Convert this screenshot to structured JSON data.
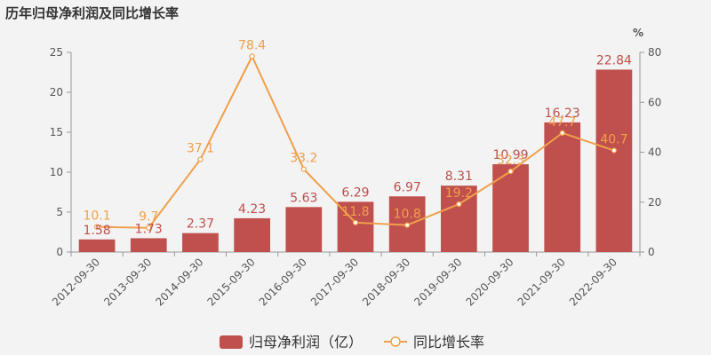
{
  "chart_data": {
    "type": "bar",
    "title": "历年归母净利润及同比增长率",
    "categories": [
      "2012-09-30",
      "2013-09-30",
      "2014-09-30",
      "2015-09-30",
      "2016-09-30",
      "2017-09-30",
      "2018-09-30",
      "2019-09-30",
      "2020-09-30",
      "2021-09-30",
      "2022-09-30"
    ],
    "series": [
      {
        "name": "归母净利润（亿）",
        "type": "bar",
        "axis": "left",
        "values": [
          1.58,
          1.73,
          2.37,
          4.23,
          5.63,
          6.29,
          6.97,
          8.31,
          10.99,
          16.23,
          22.84
        ]
      },
      {
        "name": "同比增长率",
        "type": "line",
        "axis": "right",
        "values": [
          10.1,
          9.7,
          37.1,
          78.4,
          33.2,
          11.8,
          10.8,
          19.2,
          32.3,
          47.7,
          40.7
        ]
      }
    ],
    "y_left": {
      "min": 0,
      "max": 25,
      "ticks": [
        0,
        5,
        10,
        15,
        20,
        25
      ]
    },
    "y_right": {
      "min": 0,
      "max": 80,
      "ticks": [
        0,
        20,
        40,
        60,
        80
      ],
      "unit": "%"
    },
    "legend_position": "bottom-center",
    "colors": {
      "bar": "#c0504d",
      "line": "#f0a04b",
      "axis": "#999999"
    }
  }
}
